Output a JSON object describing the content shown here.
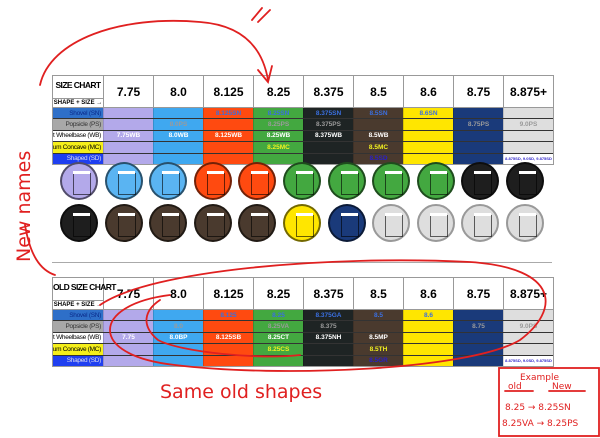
{
  "sizes": [
    "7.75",
    "8.0",
    "8.125",
    "8.25",
    "8.375",
    "8.5",
    "8.6",
    "8.75",
    "8.875+"
  ],
  "column_colors": [
    "#b3a9ea",
    "#3fa8f0",
    "#ff4a10",
    "#43a840",
    "#1e2424",
    "#4a3a2e",
    "#ffe600",
    "#1a3a7a",
    "#dedede"
  ],
  "row_labels": [
    {
      "label": "Shovel (SN)",
      "bg": "#2e6fc8",
      "color": "#0a2a8a",
      "text": "#3a6fe0"
    },
    {
      "label": "Popsicle (PS)",
      "bg": "#a8a8a8",
      "color": "#333333",
      "text": "#9a9a9a"
    },
    {
      "label": "Short Wheelbase (WB)",
      "bg": "#ffffff",
      "color": "#000000",
      "text": "#ffffff"
    },
    {
      "label": "Medium Concave (MC)",
      "bg": "#f5ef1a",
      "color": "#000000",
      "text": "#f0f020"
    },
    {
      "label": "Shaped (SD)",
      "bg": "#1f3ff0",
      "color": "#dde",
      "text": "#2a1fc8"
    }
  ],
  "new_chart": {
    "title": "SIZE CHART",
    "subtitle": "SHAPE + SIZE →",
    "rows": [
      [
        "",
        "",
        "8.125SN",
        "8.25SN",
        "8.375SN",
        "8.5SN",
        "8.6SN",
        "",
        ""
      ],
      [
        "",
        "8.0PS",
        "",
        "8.25PS",
        "8.375PS",
        "",
        "",
        "8.75PS",
        "9.0PS"
      ],
      [
        "7.75WB",
        "8.0WB",
        "8.125WB",
        "8.25WB",
        "8.375WB",
        "8.5WB",
        "",
        "",
        ""
      ],
      [
        "",
        "",
        "",
        "8.25MC",
        "",
        "8.5MC",
        "",
        "",
        ""
      ],
      [
        "",
        "",
        "",
        "",
        "",
        "8.5SD",
        "",
        "",
        "8.875SD, 9.0SD, 9.875SD"
      ]
    ]
  },
  "old_chart": {
    "title": "OLD SIZE CHART",
    "subtitle": "SHAPE + SIZE →",
    "rows": [
      [
        "",
        "",
        "8.125",
        "8.25",
        "8.375GA",
        "8.5",
        "8.6",
        "",
        ""
      ],
      [
        "",
        "8.0",
        "",
        "8.25VA",
        "8.375",
        "",
        "",
        "8.75",
        "9.0PS"
      ],
      [
        "7.75",
        "8.0BP",
        "8.125SB",
        "8.25CT",
        "8.375NH",
        "8.5MP",
        "",
        "",
        ""
      ],
      [
        "",
        "",
        "",
        "8.25CS",
        "",
        "8.5TH",
        "",
        "",
        ""
      ],
      [
        "",
        "",
        "",
        "",
        "",
        "8.5GR",
        "",
        "",
        "8.875SD, 9.0SD, 9.875SD"
      ]
    ]
  },
  "discs": {
    "row1": [
      "#b3a9ea",
      "#5ab4f2",
      "#5ab4f2",
      "#ff4a10",
      "#ff4a10",
      "#43a840",
      "#43a840",
      "#43a840",
      "#43a840",
      "#1e1e1e",
      "#1e1e1e"
    ],
    "row2": [
      "#1e1e1e",
      "#4a3a2e",
      "#4a3a2e",
      "#4a3a2e",
      "#4a3a2e",
      "#ffe600",
      "#1a3a7a",
      "#dedede",
      "#dedede",
      "#dedede",
      "#dedede"
    ]
  },
  "annotations": {
    "new_names": "New names",
    "same_old_shapes": "Same old shapes",
    "example_title": "Example",
    "old_label": "old",
    "new_label": "New",
    "example_1": "8.25 → 8.25SN",
    "example_2": "8.25VA → 8.25PS",
    "ink_color": "#e02020"
  }
}
